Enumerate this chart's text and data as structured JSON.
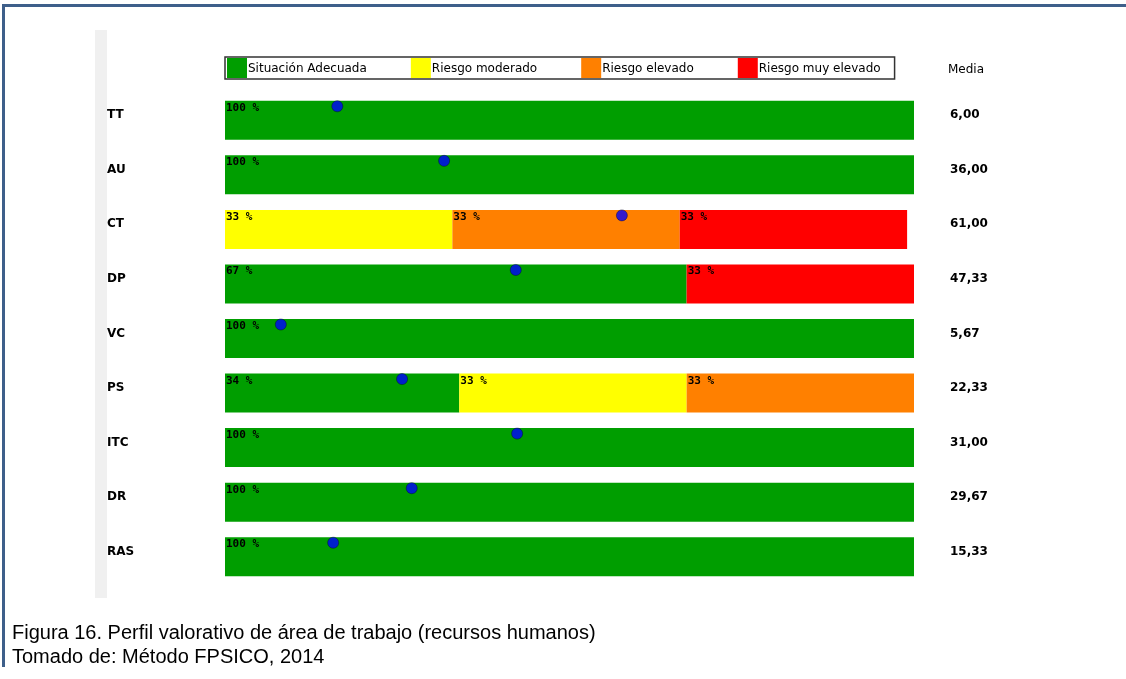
{
  "chart_data": {
    "type": "bar",
    "orientation": "horizontal",
    "stacked": true,
    "categories": [
      "TT",
      "AU",
      "CT",
      "DP",
      "VC",
      "PS",
      "ITC",
      "DR",
      "RAS"
    ],
    "y2_categories": [
      "6,00",
      "36,00",
      "61,00",
      "47,33",
      "5,67",
      "22,33",
      "31,00",
      "29,67",
      "15,33"
    ],
    "y2label": "Media",
    "xlim": [
      0,
      100
    ],
    "tick_labels": "y",
    "legend": "top",
    "series": [
      {
        "name": "Situación Adecuada",
        "color": "#009e00",
        "values": [
          100,
          100,
          null,
          67,
          100,
          34,
          100,
          100,
          100
        ],
        "value_labels": [
          "100 %",
          "100 %",
          null,
          "67 %",
          "100 %",
          "34 %",
          "100 %",
          "100 %",
          "100 %"
        ]
      },
      {
        "name": "Riesgo moderado",
        "color": "#ffff00",
        "values": [
          null,
          null,
          33,
          null,
          null,
          33,
          null,
          null,
          null
        ],
        "value_labels": [
          null,
          null,
          "33 %",
          null,
          null,
          "33 %",
          null,
          null,
          null
        ]
      },
      {
        "name": "Riesgo elevado",
        "color": "#ff8000",
        "values": [
          null,
          null,
          33,
          null,
          null,
          33,
          null,
          null,
          null
        ],
        "value_labels": [
          null,
          null,
          "33 %",
          null,
          null,
          "33 %",
          null,
          null,
          null
        ]
      },
      {
        "name": "Riesgo muy elevado",
        "color": "#ff0000",
        "values": [
          null,
          null,
          33,
          33,
          null,
          null,
          null,
          null,
          null
        ],
        "value_labels": [
          null,
          null,
          "33 %",
          "33 %",
          null,
          null,
          null,
          null,
          null
        ]
      },
      {
        "type": "scatter",
        "color": "#0000ff",
        "marker": "circle",
        "values": [
          16.3,
          31.8,
          57.6,
          42.2,
          8.1,
          25.7,
          42.4,
          27.1,
          15.7
        ]
      }
    ],
    "annotations": [
      "Figura 16. Perfil valorativo de área de trabajo (recursos humanos)",
      "Tomado de: Método FPSICO, 2014"
    ]
  }
}
